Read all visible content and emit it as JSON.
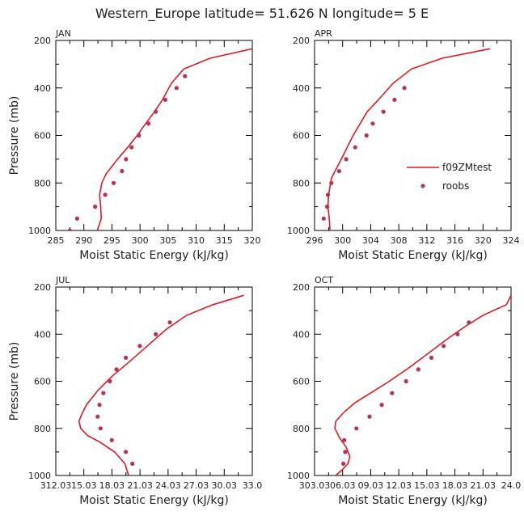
{
  "figure": {
    "title": "Western_Europe  latitude= 51.626 N longitude= 5 E",
    "ylabel": "Pressure (mb)",
    "xlabel": "Moist Static Energy (kJ/kg)",
    "colors": {
      "model": "#e0191f",
      "obs": "#b8315a",
      "axis": "#000000"
    }
  },
  "legend": {
    "model_label": "f09ZMtest",
    "obs_label": "roobs",
    "placement": "inside APR panel, middle-right"
  },
  "chart_data": [
    {
      "panel": "JAN",
      "type": "line",
      "title": "JAN",
      "xlabel": "Moist Static Energy (kJ/kg)",
      "ylabel": "Pressure (mb)",
      "xlim": [
        285,
        320
      ],
      "ylim": [
        1000,
        200
      ],
      "y_inverted": true,
      "xticks": [
        "285",
        "290",
        "295",
        "300",
        "305",
        "310",
        "315",
        "320"
      ],
      "yticks": [
        "200",
        "400",
        "600",
        "800",
        "1000"
      ],
      "series": [
        {
          "name": "f09ZMtest",
          "kind": "line",
          "points": [
            [
              292.4,
              1000
            ],
            [
              293.1,
              950
            ],
            [
              293.0,
              900
            ],
            [
              292.8,
              850
            ],
            [
              293.2,
              800
            ],
            [
              294.0,
              760
            ],
            [
              296.0,
              700
            ],
            [
              297.8,
              650
            ],
            [
              299.5,
              600
            ],
            [
              301.0,
              550
            ],
            [
              302.6,
              500
            ],
            [
              304.0,
              450
            ],
            [
              305.6,
              380
            ],
            [
              307.8,
              320
            ],
            [
              312.5,
              275
            ],
            [
              320.0,
              235
            ]
          ]
        },
        {
          "name": "roobs",
          "kind": "scatter",
          "points": [
            [
              287.5,
              1000
            ],
            [
              288.8,
              950
            ],
            [
              292.0,
              900
            ],
            [
              293.8,
              850
            ],
            [
              295.3,
              800
            ],
            [
              296.8,
              750
            ],
            [
              297.5,
              700
            ],
            [
              298.5,
              650
            ],
            [
              299.8,
              600
            ],
            [
              301.5,
              550
            ],
            [
              302.8,
              500
            ],
            [
              304.5,
              450
            ],
            [
              306.5,
              400
            ],
            [
              308.0,
              350
            ]
          ]
        }
      ]
    },
    {
      "panel": "APR",
      "type": "line",
      "title": "APR",
      "xlabel": "Moist Static Energy (kJ/kg)",
      "ylabel": "Pressure (mb)",
      "xlim": [
        296,
        324
      ],
      "ylim": [
        1000,
        200
      ],
      "y_inverted": true,
      "xticks": [
        "296",
        "300",
        "304",
        "308",
        "312",
        "316",
        "320",
        "324"
      ],
      "yticks": [
        "200",
        "400",
        "600",
        "800",
        "1000"
      ],
      "series": [
        {
          "name": "f09ZMtest",
          "kind": "line",
          "points": [
            [
              298.2,
              1000
            ],
            [
              298.1,
              950
            ],
            [
              297.9,
              900
            ],
            [
              298.0,
              850
            ],
            [
              298.4,
              780
            ],
            [
              299.8,
              700
            ],
            [
              301.5,
              600
            ],
            [
              303.5,
              500
            ],
            [
              305.4,
              440
            ],
            [
              307.2,
              380
            ],
            [
              309.8,
              320
            ],
            [
              314.2,
              275
            ],
            [
              321.0,
              235
            ]
          ]
        },
        {
          "name": "roobs",
          "kind": "scatter",
          "points": [
            [
              297.3,
              950
            ],
            [
              297.8,
              900
            ],
            [
              297.9,
              850
            ],
            [
              298.4,
              800
            ],
            [
              299.5,
              750
            ],
            [
              300.5,
              700
            ],
            [
              301.8,
              650
            ],
            [
              303.4,
              600
            ],
            [
              304.3,
              550
            ],
            [
              305.8,
              500
            ],
            [
              307.4,
              450
            ],
            [
              308.8,
              400
            ]
          ]
        }
      ]
    },
    {
      "panel": "JUL",
      "type": "line",
      "title": "JUL",
      "xlabel": "Moist Static Energy (kJ/kg)",
      "ylabel": "Pressure (mb)",
      "xlim": [
        312.03,
        333.0
      ],
      "ylim": [
        1000,
        200
      ],
      "y_inverted": true,
      "xticks": [
        "312.03",
        "15.03",
        "18.03",
        "21.03",
        "24.03",
        "27.03",
        "30.03",
        "33.0"
      ],
      "yticks": [
        "200",
        "400",
        "600",
        "800",
        "1000"
      ],
      "series": [
        {
          "name": "f09ZMtest",
          "kind": "line",
          "points": [
            [
              319.8,
              1000
            ],
            [
              319.4,
              950
            ],
            [
              318.3,
              900
            ],
            [
              316.8,
              860
            ],
            [
              315.4,
              830
            ],
            [
              314.7,
              800
            ],
            [
              314.5,
              770
            ],
            [
              314.8,
              740
            ],
            [
              315.3,
              700
            ],
            [
              316.5,
              640
            ],
            [
              318.0,
              580
            ],
            [
              319.8,
              520
            ],
            [
              321.8,
              450
            ],
            [
              323.8,
              380
            ],
            [
              326.0,
              320
            ],
            [
              328.8,
              275
            ],
            [
              332.1,
              235
            ]
          ]
        },
        {
          "name": "roobs",
          "kind": "scatter",
          "points": [
            [
              320.2,
              950
            ],
            [
              319.5,
              900
            ],
            [
              318.0,
              850
            ],
            [
              316.8,
              800
            ],
            [
              316.5,
              750
            ],
            [
              316.7,
              700
            ],
            [
              317.1,
              650
            ],
            [
              317.8,
              600
            ],
            [
              318.5,
              550
            ],
            [
              319.5,
              500
            ],
            [
              321.0,
              450
            ],
            [
              322.7,
              400
            ],
            [
              324.2,
              350
            ]
          ]
        }
      ]
    },
    {
      "panel": "OCT",
      "type": "line",
      "title": "OCT",
      "xlabel": "Moist Static Energy (kJ/kg)",
      "ylabel": "Pressure (mb)",
      "xlim": [
        303.03,
        324.0
      ],
      "ylim": [
        1000,
        200
      ],
      "y_inverted": true,
      "xticks": [
        "303.03",
        "06.03",
        "09.03",
        "12.03",
        "15.03",
        "18.03",
        "21.03",
        "24.0"
      ],
      "yticks": [
        "200",
        "400",
        "600",
        "800",
        "1000"
      ],
      "series": [
        {
          "name": "f09ZMtest",
          "kind": "line",
          "points": [
            [
              305.3,
              1000
            ],
            [
              306.0,
              975
            ],
            [
              306.6,
              950
            ],
            [
              306.8,
              920
            ],
            [
              306.4,
              880
            ],
            [
              305.7,
              840
            ],
            [
              305.2,
              800
            ],
            [
              305.3,
              770
            ],
            [
              306.2,
              730
            ],
            [
              307.4,
              690
            ],
            [
              309.0,
              650
            ],
            [
              311.0,
              600
            ],
            [
              313.2,
              540
            ],
            [
              315.2,
              480
            ],
            [
              317.2,
              420
            ],
            [
              319.0,
              370
            ],
            [
              321.0,
              320
            ],
            [
              323.5,
              275
            ],
            [
              324.0,
              235
            ]
          ]
        },
        {
          "name": "roobs",
          "kind": "scatter",
          "points": [
            [
              306.1,
              950
            ],
            [
              306.3,
              900
            ],
            [
              306.2,
              850
            ],
            [
              307.5,
              800
            ],
            [
              308.9,
              750
            ],
            [
              310.2,
              700
            ],
            [
              311.3,
              650
            ],
            [
              312.8,
              600
            ],
            [
              314.1,
              550
            ],
            [
              315.5,
              500
            ],
            [
              316.8,
              450
            ],
            [
              318.3,
              400
            ],
            [
              319.5,
              350
            ]
          ]
        }
      ]
    }
  ]
}
